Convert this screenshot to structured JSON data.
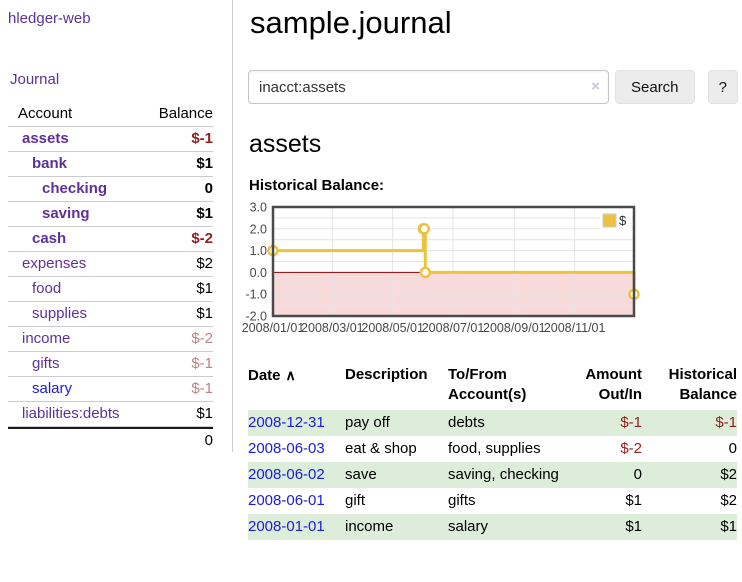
{
  "app": {
    "brand": "hledger-web",
    "nav_journal": "Journal"
  },
  "sidebar": {
    "header": {
      "account": "Account",
      "balance": "Balance"
    },
    "accounts": [
      {
        "name": "assets",
        "depth": 1,
        "balance": "$-1",
        "selected": true
      },
      {
        "name": "bank",
        "depth": 2,
        "balance": "$1",
        "selected": true
      },
      {
        "name": "checking",
        "depth": 3,
        "balance": "0",
        "selected": true
      },
      {
        "name": "saving",
        "depth": 3,
        "balance": "$1",
        "selected": true
      },
      {
        "name": "cash",
        "depth": 2,
        "balance": "$-2",
        "selected": true
      },
      {
        "name": "expenses",
        "depth": 1,
        "balance": "$2"
      },
      {
        "name": "food",
        "depth": 2,
        "balance": "$1"
      },
      {
        "name": "supplies",
        "depth": 2,
        "balance": "$1"
      },
      {
        "name": "income",
        "depth": 1,
        "balance": "$-2"
      },
      {
        "name": "gifts",
        "depth": 2,
        "balance": "$-1"
      },
      {
        "name": "salary",
        "depth": 2,
        "balance": "$-1",
        "unvisited": true
      },
      {
        "name": "liabilities:debts",
        "depth": 1,
        "balance": "$1"
      }
    ],
    "total": "0"
  },
  "header": {
    "title": "sample.journal"
  },
  "search": {
    "value": "inacct:assets",
    "clear_icon": "×",
    "button_label": "Search",
    "help_label": "?"
  },
  "account_page": {
    "heading": "assets",
    "chart_label": "Historical Balance:"
  },
  "chart_data": {
    "type": "line",
    "step": true,
    "title": "Historical Balance",
    "series": [
      {
        "name": "$",
        "points": [
          [
            "2008-01-01",
            1
          ],
          [
            "2008-06-01",
            2
          ],
          [
            "2008-06-02",
            2
          ],
          [
            "2008-06-03",
            0
          ],
          [
            "2008-12-31",
            -1
          ]
        ]
      }
    ],
    "x_range": [
      "2008-01-01",
      "2008-12-31"
    ],
    "ylim": [
      -2,
      3
    ],
    "y_ticks": [
      3,
      2,
      1,
      0,
      -1,
      -2
    ],
    "x_tick_labels": [
      "2008/01/01",
      "2008/03/01",
      "2008/05/01",
      "2008/07/01",
      "2008/09/01",
      "2008/11/01"
    ],
    "legend": {
      "position": "top-right",
      "entries": [
        "$"
      ]
    },
    "grid": true,
    "colors": {
      "line": "#edc240",
      "marker_fill": "#ffffff",
      "negative_fill": "#f9dada",
      "zero_line": "#8b0000",
      "border": "#4a4a4a",
      "grid": "#e4e4e4",
      "axis_text": "#484848"
    }
  },
  "register": {
    "headers": {
      "date": "Date",
      "sort_icon": "∧",
      "description": "Description",
      "account": "To/From Account(s)",
      "amount": "Amount Out/In",
      "balance": "Historical Balance"
    },
    "rows": [
      {
        "date": "2008-12-31",
        "description": "pay off",
        "accounts": "debts",
        "amount": "$-1",
        "balance": "$-1"
      },
      {
        "date": "2008-06-03",
        "description": "eat & shop",
        "accounts": "food, supplies",
        "amount": "$-2",
        "balance": "0"
      },
      {
        "date": "2008-06-02",
        "description": "save",
        "accounts": "saving, checking",
        "amount": "0",
        "balance": "$2"
      },
      {
        "date": "2008-06-01",
        "description": "gift",
        "accounts": "gifts",
        "amount": "$1",
        "balance": "$2"
      },
      {
        "date": "2008-01-01",
        "description": "income",
        "accounts": "salary",
        "amount": "$1",
        "balance": "$1"
      }
    ]
  }
}
